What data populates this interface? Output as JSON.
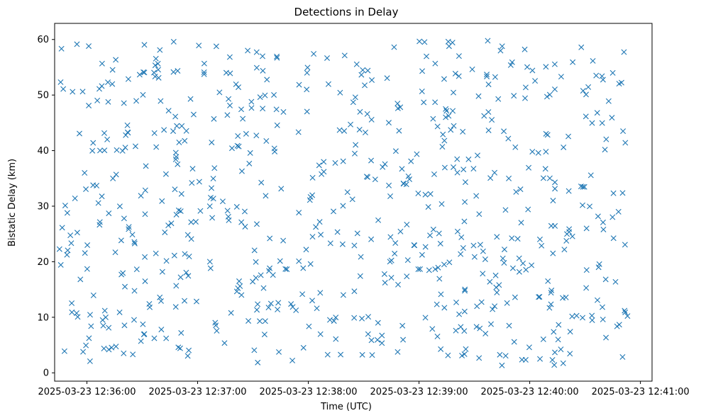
{
  "chart_data": {
    "type": "scatter",
    "title": "Detections in Delay",
    "xlabel": "Time (UTC)",
    "ylabel": "Bistatic Delay (km)",
    "marker": "x",
    "color": "#1f77b4",
    "x_ticks": [
      "2025-03-23 12:36:00",
      "2025-03-23 12:37:00",
      "2025-03-23 12:38:00",
      "2025-03-23 12:39:00",
      "2025-03-23 12:40:00",
      "2025-03-23 12:41:00"
    ],
    "x_tick_seconds": [
      0,
      60,
      120,
      180,
      240,
      300
    ],
    "xlim_seconds": [
      -17.5,
      306.3
    ],
    "y_ticks": [
      0,
      10,
      20,
      30,
      40,
      50,
      60
    ],
    "ylim": [
      -1.5,
      62.9
    ],
    "grid": false,
    "seed": 20250323,
    "n_points": 700,
    "x_range_seconds": [
      -15,
      293
    ],
    "y_range": [
      1.3,
      59.8
    ]
  }
}
